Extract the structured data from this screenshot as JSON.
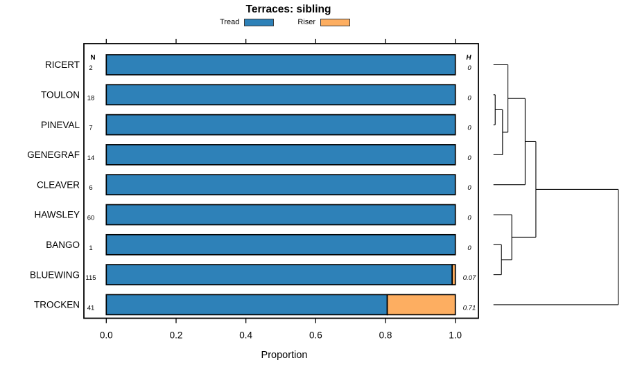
{
  "header": {
    "title": "Terraces: sibling",
    "legend": [
      {
        "label": "Tread",
        "color": "#2e81b8"
      },
      {
        "label": "Riser",
        "color": "#fdae61"
      }
    ]
  },
  "chart_data": {
    "type": "bar",
    "orientation": "horizontal",
    "stacked": true,
    "title": "Terraces: sibling",
    "xlabel": "Proportion",
    "xlim": [
      0,
      1
    ],
    "x_ticks": [
      "0.0",
      "0.2",
      "0.4",
      "0.6",
      "0.8",
      "1.0"
    ],
    "x_tick_values": [
      0,
      0.2,
      0.4,
      0.6,
      0.8,
      1.0
    ],
    "grid": false,
    "legend_position": "top",
    "categories": [
      "RICERT",
      "TOULON",
      "PINEVAL",
      "GENEGRAF",
      "CLEAVER",
      "HAWSLEY",
      "BANGO",
      "BLUEWING",
      "TROCKEN"
    ],
    "n_column": {
      "header": "N",
      "values": [
        "2",
        "18",
        "7",
        "14",
        "6",
        "60",
        "1",
        "115",
        "41"
      ]
    },
    "h_column": {
      "header": "H",
      "values": [
        "0",
        "0",
        "0",
        "0",
        "0",
        "0",
        "0",
        "0.07",
        "0.71"
      ]
    },
    "series": [
      {
        "name": "Tread",
        "color": "#2e81b8",
        "values": [
          1,
          1,
          1,
          1,
          1,
          1,
          1,
          0.991,
          0.805
        ]
      },
      {
        "name": "Riser",
        "color": "#fdae61",
        "values": [
          0,
          0,
          0,
          0,
          0,
          0,
          0,
          0.009,
          0.195
        ]
      }
    ],
    "dendrogram": {
      "note": "row clustering drawn right of plot; h = relative merge height 0..1",
      "tree": {
        "h": 1.0,
        "children": [
          {
            "h": 0.34,
            "children": [
              {
                "h": 0.254,
                "children": [
                  {
                    "h": 0.116,
                    "children": [
                      {
                        "leaf": 0
                      },
                      {
                        "h": 0.073,
                        "children": [
                          {
                            "h": 0.014,
                            "children": [
                              {
                                "leaf": 1
                              },
                              {
                                "leaf": 2
                              }
                            ]
                          },
                          {
                            "leaf": 3
                          }
                        ]
                      }
                    ]
                  },
                  {
                    "leaf": 4
                  }
                ]
              },
              {
                "h": 0.147,
                "children": [
                  {
                    "leaf": 5
                  },
                  {
                    "h": 0.064,
                    "children": [
                      {
                        "leaf": 6
                      },
                      {
                        "leaf": 7
                      }
                    ]
                  }
                ]
              }
            ]
          },
          {
            "leaf": 8
          }
        ]
      }
    }
  }
}
